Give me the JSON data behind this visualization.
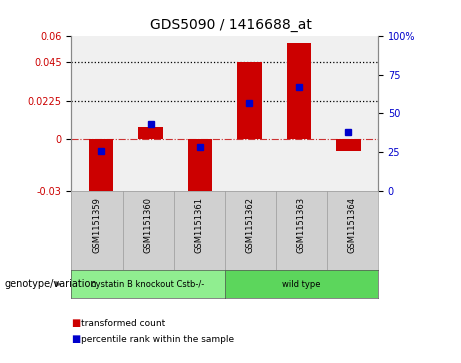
{
  "title": "GDS5090 / 1416688_at",
  "samples": [
    "GSM1151359",
    "GSM1151360",
    "GSM1151361",
    "GSM1151362",
    "GSM1151363",
    "GSM1151364"
  ],
  "red_bars": [
    -0.031,
    0.007,
    -0.031,
    0.045,
    0.056,
    -0.007
  ],
  "blue_dots": [
    25.5,
    43.0,
    28.0,
    57.0,
    67.0,
    38.0
  ],
  "ylim_left": [
    -0.03,
    0.06
  ],
  "ylim_right": [
    0,
    100
  ],
  "yticks_left": [
    -0.03,
    0,
    0.0225,
    0.045,
    0.06
  ],
  "yticks_left_labels": [
    "-0.03",
    "0",
    "0.0225",
    "0.045",
    "0.06"
  ],
  "yticks_right": [
    0,
    25,
    50,
    75,
    100
  ],
  "yticks_right_labels": [
    "0",
    "25",
    "50",
    "75",
    "100%"
  ],
  "hlines": [
    0.045,
    0.0225
  ],
  "groups": [
    {
      "label": "cystatin B knockout Cstb-/-",
      "indices": [
        0,
        1,
        2
      ],
      "color": "#90EE90"
    },
    {
      "label": "wild type",
      "indices": [
        3,
        4,
        5
      ],
      "color": "#5CD65C"
    }
  ],
  "bar_color": "#CC0000",
  "dot_color": "#0000CC",
  "zero_line_color": "#CC3333",
  "plot_bg_color": "#F0F0F0",
  "bar_width": 0.5,
  "legend_items": [
    {
      "color": "#CC0000",
      "label": "transformed count"
    },
    {
      "color": "#0000CC",
      "label": "percentile rank within the sample"
    }
  ]
}
